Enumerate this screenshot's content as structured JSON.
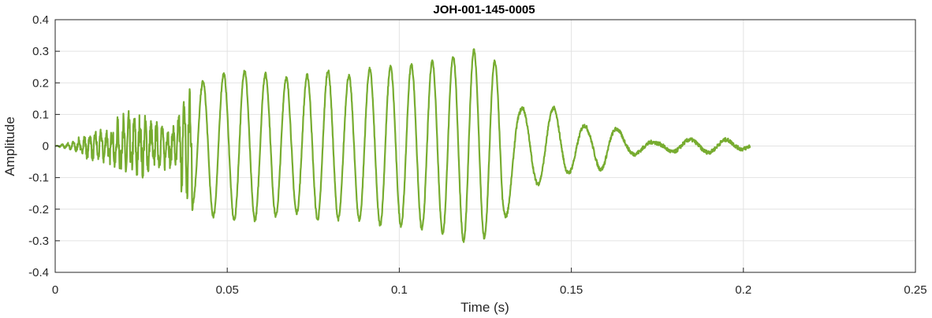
{
  "chart_data": {
    "type": "line",
    "title": "JOH-001-145-0005",
    "xlabel": "Time (s)",
    "ylabel": "Amplitude",
    "xlim": [
      0,
      0.25
    ],
    "ylim": [
      -0.4,
      0.4
    ],
    "xticks": [
      "0",
      "0.05",
      "0.1",
      "0.15",
      "0.2",
      "0.25"
    ],
    "yticks": [
      "0.4",
      "0.3",
      "0.2",
      "0.1",
      "0",
      "-0.1",
      "-0.2",
      "-0.3",
      "-0.4"
    ],
    "grid": true,
    "series_color": "#77AC30",
    "series": [
      {
        "x": [
          0,
          0.005,
          0.01,
          0.015,
          0.02,
          0.025,
          0.03,
          0.035,
          0.04,
          0.045,
          0.05,
          0.055,
          0.06,
          0.065,
          0.07,
          0.075,
          0.08,
          0.085,
          0.09,
          0.095,
          0.1,
          0.105,
          0.11,
          0.115,
          0.12,
          0.125,
          0.13,
          0.135,
          0.14,
          0.145,
          0.15,
          0.155,
          0.16,
          0.165,
          0.17,
          0.175,
          0.18,
          0.185,
          0.19,
          0.195,
          0.2,
          0.202
        ],
        "y": [
          0,
          0.01,
          0.03,
          0.04,
          0.07,
          0.07,
          0.05,
          0.05,
          0.18,
          0.22,
          0.23,
          0.24,
          0.23,
          0.22,
          0.21,
          0.23,
          0.24,
          0.22,
          0.24,
          0.25,
          0.25,
          0.26,
          0.27,
          0.28,
          0.31,
          0.29,
          0.25,
          0.12,
          0.12,
          0.12,
          0.08,
          0.06,
          0.08,
          0.04,
          0.02,
          0.01,
          0.02,
          0.02,
          0.02,
          0.02,
          0.01,
          0
        ]
      }
    ]
  }
}
